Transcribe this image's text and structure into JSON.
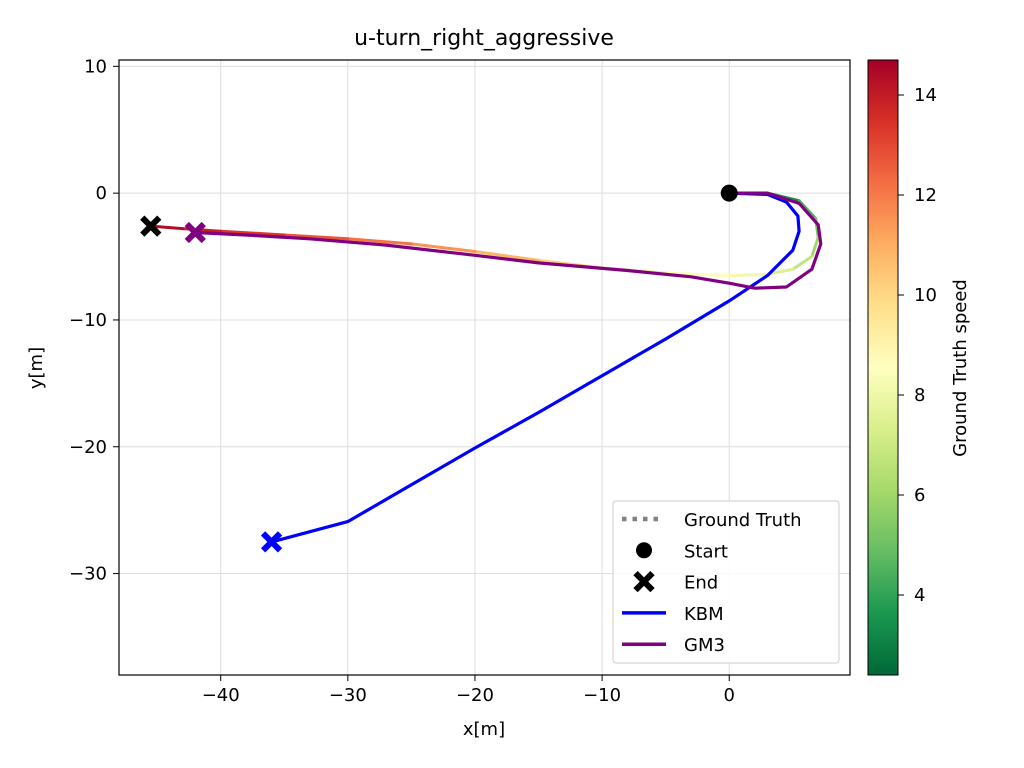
{
  "chart_data": {
    "type": "line",
    "title": "u-turn_right_aggressive",
    "xlabel": "x[m]",
    "ylabel": "y[m]",
    "xlim": [
      -48,
      9.5
    ],
    "ylim": [
      -38,
      10.5
    ],
    "xticks": [
      -40,
      -30,
      -20,
      -10,
      0
    ],
    "yticks": [
      10,
      0,
      -10,
      -20,
      -30
    ],
    "grid": true,
    "legend_position": "lower-right",
    "colorbar": {
      "label": "Ground Truth speed",
      "range": [
        2.4,
        14.7
      ],
      "ticks": [
        4,
        6,
        8,
        10,
        12,
        14
      ],
      "colormap": "RdYlGn reversed"
    },
    "series": [
      {
        "name": "Ground Truth",
        "style": "dotted",
        "color": "#808080",
        "x": [
          0,
          3,
          5.5,
          6.8,
          7,
          6.5,
          5,
          3,
          0,
          -5,
          -10,
          -15,
          -20,
          -25,
          -30,
          -35,
          -40,
          -43,
          -45.5
        ],
        "y": [
          0,
          0,
          -0.6,
          -2,
          -3.5,
          -5,
          -6,
          -6.4,
          -6.5,
          -6.3,
          -5.9,
          -5.3,
          -4.6,
          -4,
          -3.6,
          -3.3,
          -3,
          -2.8,
          -2.6
        ],
        "speed": [
          2.5,
          3,
          4,
          5,
          5.5,
          6.5,
          7,
          7.8,
          8.3,
          9,
          9.8,
          10.5,
          11.2,
          11.8,
          12.4,
          13,
          13.6,
          14.2,
          14.6
        ]
      },
      {
        "name": "KBM",
        "color": "#0000ff",
        "x": [
          0,
          3,
          4.5,
          5.4,
          5.5,
          5,
          3,
          0,
          -5,
          -10,
          -15,
          -20,
          -25,
          -30,
          -36
        ],
        "y": [
          0,
          -0.1,
          -0.7,
          -1.8,
          -3,
          -4.5,
          -6.5,
          -8.5,
          -11.5,
          -14.4,
          -17.3,
          -20.1,
          -23,
          -25.9,
          -27.5
        ]
      },
      {
        "name": "GM3",
        "color": "#800080",
        "x": [
          0,
          3,
          5.5,
          7,
          7.2,
          6.5,
          4.5,
          2,
          0,
          -3,
          -8,
          -15,
          -20,
          -27,
          -33,
          -38,
          -42
        ],
        "y": [
          0,
          0,
          -0.8,
          -2.5,
          -4,
          -6,
          -7.4,
          -7.5,
          -7.1,
          -6.6,
          -6.1,
          -5.5,
          -4.9,
          -4.1,
          -3.6,
          -3.3,
          -3.1
        ]
      }
    ],
    "markers": {
      "start": {
        "x": 0,
        "y": 0,
        "color": "#000000"
      },
      "end_ground_truth": {
        "x": -45.5,
        "y": -2.6,
        "color": "#000000"
      },
      "end_kbm": {
        "x": -36,
        "y": -27.5,
        "color": "#0000ff"
      },
      "end_gm3": {
        "x": -42,
        "y": -3.1,
        "color": "#800080"
      }
    },
    "legend": [
      {
        "label": "Ground Truth",
        "kind": "dotted-line",
        "color": "#808080"
      },
      {
        "label": "Start",
        "kind": "circle",
        "color": "#000000"
      },
      {
        "label": "End",
        "kind": "x-marker",
        "color": "#000000"
      },
      {
        "label": "KBM",
        "kind": "line",
        "color": "#0000ff"
      },
      {
        "label": "GM3",
        "kind": "line",
        "color": "#800080"
      }
    ]
  }
}
